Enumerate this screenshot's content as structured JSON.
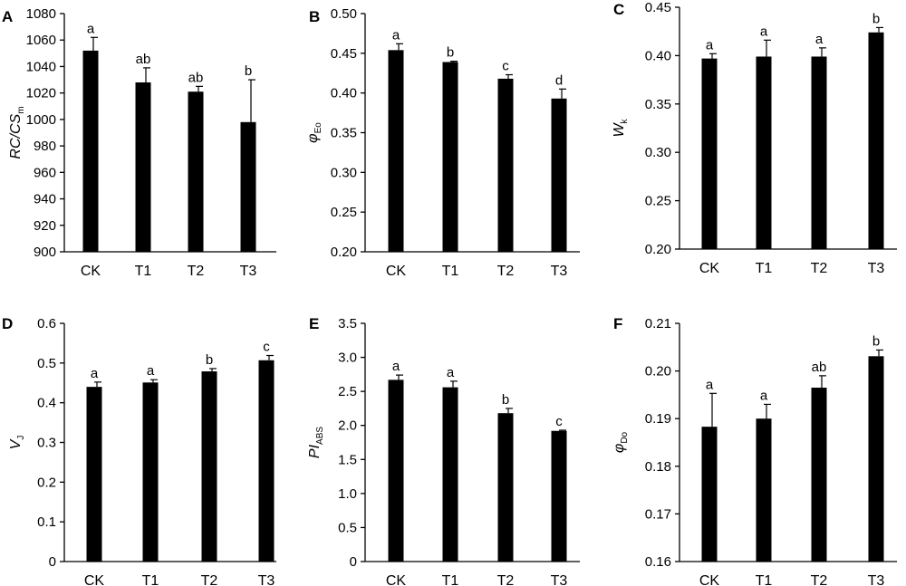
{
  "chart_data": [
    {
      "type": "bar",
      "panel": "A",
      "ylabel": {
        "main": "RC/CS",
        "sub": "m"
      },
      "categories": [
        "CK",
        "T1",
        "T2",
        "T3"
      ],
      "values": [
        1052,
        1028,
        1021,
        998
      ],
      "errors": [
        10,
        11,
        4,
        32
      ],
      "significance": [
        "a",
        "ab",
        "ab",
        "b"
      ],
      "ylim": [
        900,
        1080
      ],
      "yticks": [
        "900",
        "920",
        "940",
        "960",
        "980",
        "1000",
        "1020",
        "1040",
        "1060",
        "1080"
      ]
    },
    {
      "type": "bar",
      "panel": "B",
      "ylabel": {
        "main": "φ",
        "sub": "Eo"
      },
      "categories": [
        "CK",
        "T1",
        "T2",
        "T3"
      ],
      "values": [
        0.454,
        0.439,
        0.418,
        0.393
      ],
      "errors": [
        0.008,
        0.001,
        0.005,
        0.012
      ],
      "significance": [
        "a",
        "b",
        "c",
        "d"
      ],
      "ylim": [
        0.2,
        0.5
      ],
      "yticks": [
        "0.20",
        "0.25",
        "0.30",
        "0.35",
        "0.40",
        "0.45",
        "0.50"
      ]
    },
    {
      "type": "bar",
      "panel": "C",
      "ylabel": {
        "main": "W",
        "sub": "k"
      },
      "categories": [
        "CK",
        "T1",
        "T2",
        "T3"
      ],
      "values": [
        0.397,
        0.399,
        0.399,
        0.424
      ],
      "errors": [
        0.005,
        0.017,
        0.009,
        0.005
      ],
      "significance": [
        "a",
        "a",
        "a",
        "b"
      ],
      "ylim": [
        0.2,
        0.45
      ],
      "yticks": [
        "0.20",
        "0.25",
        "0.30",
        "0.35",
        "0.40",
        "0.45"
      ]
    },
    {
      "type": "bar",
      "panel": "D",
      "ylabel": {
        "main": "V",
        "sub": "J"
      },
      "categories": [
        "CK",
        "T1",
        "T2",
        "T3"
      ],
      "values": [
        0.44,
        0.451,
        0.479,
        0.507
      ],
      "errors": [
        0.012,
        0.007,
        0.007,
        0.012
      ],
      "significance": [
        "a",
        "a",
        "b",
        "c"
      ],
      "ylim": [
        0,
        0.6
      ],
      "yticks": [
        "0",
        "0.1",
        "0.2",
        "0.3",
        "0.4",
        "0.5",
        "0.6"
      ]
    },
    {
      "type": "bar",
      "panel": "E",
      "ylabel": {
        "main": "PI",
        "sub": "ABS"
      },
      "categories": [
        "CK",
        "T1",
        "T2",
        "T3"
      ],
      "values": [
        2.67,
        2.56,
        2.18,
        1.92
      ],
      "errors": [
        0.07,
        0.09,
        0.07,
        0.01
      ],
      "significance": [
        "a",
        "a",
        "b",
        "c"
      ],
      "ylim": [
        0,
        3.5
      ],
      "yticks": [
        "0",
        "0.5",
        "1.0",
        "1.5",
        "2.0",
        "2.5",
        "3.0",
        "3.5"
      ]
    },
    {
      "type": "bar",
      "panel": "F",
      "ylabel": {
        "main": "φ",
        "sub": "Do"
      },
      "categories": [
        "CK",
        "T1",
        "T2",
        "T3"
      ],
      "values": [
        0.1883,
        0.19,
        0.1965,
        0.2031
      ],
      "errors": [
        0.007,
        0.003,
        0.0025,
        0.0013
      ],
      "significance": [
        "a",
        "a",
        "ab",
        "b"
      ],
      "ylim": [
        0.16,
        0.21
      ],
      "yticks": [
        "0.16",
        "0.17",
        "0.18",
        "0.19",
        "0.20",
        "0.21"
      ]
    }
  ]
}
